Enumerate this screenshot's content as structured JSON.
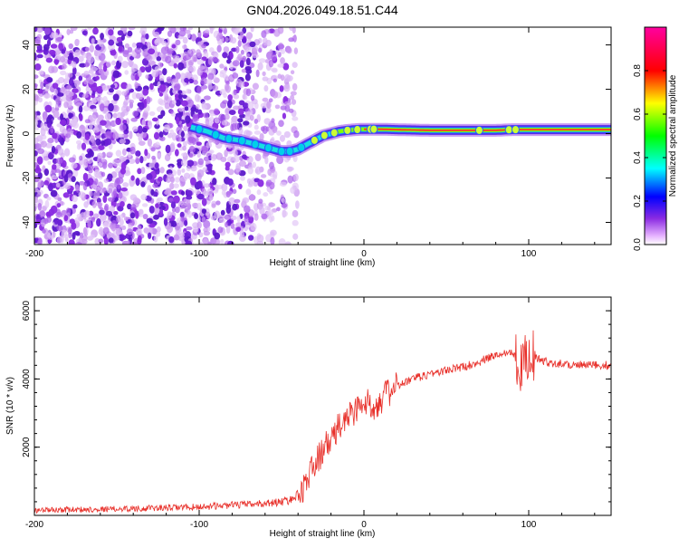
{
  "chart_data": [
    {
      "type": "heatmap",
      "title": "GN04.2026.049.18.51.C44",
      "xlabel": "Height of straight line (km)",
      "ylabel": "Frequency (Hz)",
      "xlim": [
        -200,
        150
      ],
      "ylim": [
        -50,
        48
      ],
      "xticks": [
        -200,
        -100,
        0,
        100
      ],
      "yticks": [
        -40,
        -20,
        0,
        20,
        40
      ],
      "colorbar": {
        "label": "Normalized spectral amplitude",
        "range": [
          0,
          1
        ],
        "ticks": [
          0.0,
          0.2,
          0.4,
          0.6,
          0.8
        ],
        "colormap": "rainbow (magenta-blue-cyan-green-yellow-red-pink)"
      },
      "ridge": {
        "description": "Frequency of dominant signal vs height",
        "x": [
          -105,
          -95,
          -85,
          -75,
          -65,
          -55,
          -50,
          -45,
          -40,
          -35,
          -30,
          -25,
          -20,
          -15,
          -10,
          -5,
          0,
          5,
          10,
          20,
          40,
          60,
          80,
          90,
          100,
          120,
          150
        ],
        "y": [
          3,
          1,
          -2,
          -3,
          -5,
          -7,
          -8,
          -8,
          -7,
          -5,
          -3,
          -1,
          0,
          1,
          1.5,
          1.8,
          2,
          2,
          2,
          1.8,
          1.5,
          1.5,
          1.5,
          1.8,
          1.8,
          1.8,
          1.8
        ]
      },
      "noise_region": {
        "x_range": [
          -200,
          -45
        ],
        "description": "scattered low-amplitude noise"
      }
    },
    {
      "type": "line",
      "xlabel": "Height of straight line (km)",
      "ylabel": "SNR (10 * v/v)",
      "xlim": [
        -200,
        150
      ],
      "ylim": [
        0,
        6400
      ],
      "xticks": [
        -200,
        -100,
        0,
        100
      ],
      "yticks": [
        2000,
        4000,
        6000
      ],
      "series": [
        {
          "color": "#e8302a",
          "x": [
            -200,
            -180,
            -160,
            -140,
            -120,
            -100,
            -80,
            -60,
            -50,
            -45,
            -40,
            -35,
            -30,
            -25,
            -20,
            -15,
            -10,
            -5,
            0,
            5,
            10,
            15,
            20,
            30,
            40,
            50,
            60,
            70,
            75,
            80,
            85,
            90,
            95,
            100,
            105,
            110,
            120,
            130,
            140,
            150
          ],
          "y": [
            150,
            170,
            180,
            200,
            220,
            250,
            300,
            350,
            400,
            450,
            600,
            1000,
            1500,
            1900,
            2200,
            2600,
            2900,
            3100,
            3300,
            3200,
            3400,
            3600,
            3800,
            4000,
            4150,
            4250,
            4350,
            4500,
            4600,
            4700,
            4750,
            4850,
            4300,
            4800,
            4600,
            4500,
            4450,
            4400,
            4400,
            4400
          ]
        }
      ]
    }
  ]
}
